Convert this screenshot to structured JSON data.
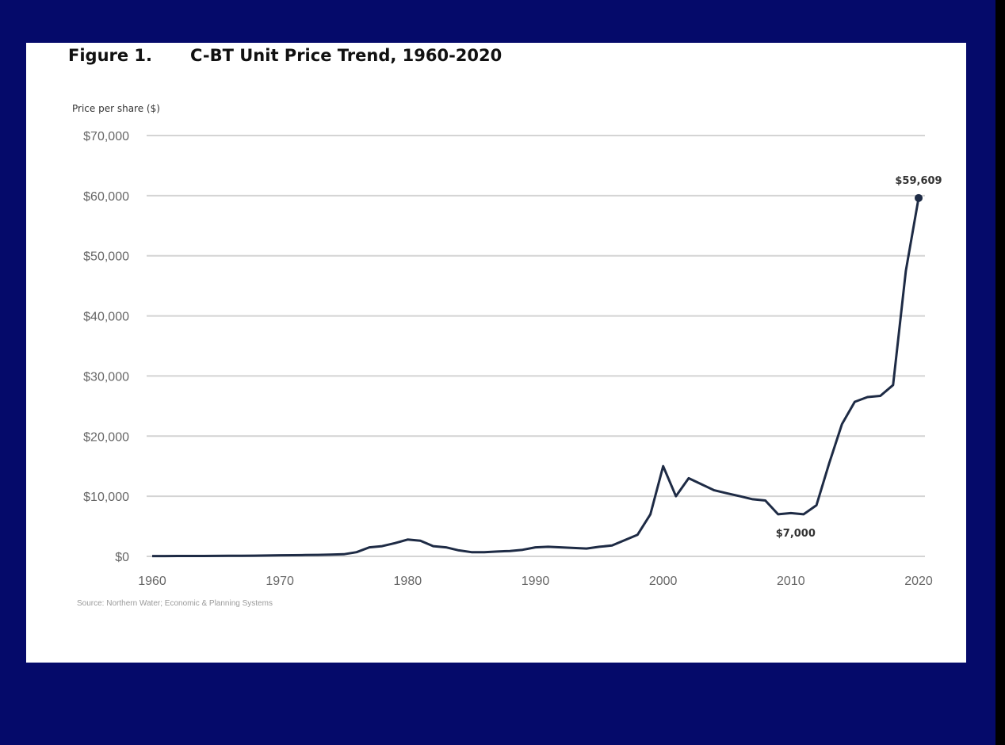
{
  "colors": {
    "background": "#050a6a",
    "panel": "#ffffff",
    "line": "#1e2b45",
    "grid": "#d4d4d4"
  },
  "figure": {
    "number": "Figure 1.",
    "title": "C-BT Unit Price Trend, 1960-2020",
    "source": "Source: Northern Water; Economic & Planning Systems"
  },
  "chart_data": {
    "type": "line",
    "title": "C-BT Unit Price Trend, 1960-2020",
    "ylabel": "Price per share ($)",
    "xlabel": "",
    "xlim": [
      1960,
      2020
    ],
    "ylim": [
      0,
      70000
    ],
    "grid": true,
    "x_ticks": [
      1960,
      1970,
      1980,
      1990,
      2000,
      2010,
      2020
    ],
    "y_ticks": [
      {
        "value": 0,
        "label": "$0"
      },
      {
        "value": 10000,
        "label": "$10,000"
      },
      {
        "value": 20000,
        "label": "$20,000"
      },
      {
        "value": 30000,
        "label": "$30,000"
      },
      {
        "value": 40000,
        "label": "$40,000"
      },
      {
        "value": 50000,
        "label": "$50,000"
      },
      {
        "value": 60000,
        "label": "$60,000"
      },
      {
        "value": 70000,
        "label": "$70,000"
      }
    ],
    "series": [
      {
        "x": [
          1960,
          1961,
          1962,
          1963,
          1964,
          1965,
          1966,
          1967,
          1968,
          1969,
          1970,
          1971,
          1972,
          1973,
          1974,
          1975,
          1976,
          1977,
          1978,
          1979,
          1980,
          1981,
          1982,
          1983,
          1984,
          1985,
          1986,
          1987,
          1988,
          1989,
          1990,
          1991,
          1992,
          1993,
          1994,
          1995,
          1996,
          1997,
          1998,
          1999,
          2000,
          2001,
          2002,
          2003,
          2004,
          2005,
          2006,
          2007,
          2008,
          2009,
          2010,
          2011,
          2012,
          2013,
          2014,
          2015,
          2016,
          2017,
          2018,
          2019,
          2020
        ],
        "y": [
          50,
          50,
          60,
          60,
          70,
          80,
          90,
          100,
          120,
          150,
          180,
          200,
          220,
          250,
          300,
          350,
          700,
          1500,
          1700,
          2200,
          2800,
          2600,
          1700,
          1500,
          1000,
          700,
          700,
          800,
          900,
          1100,
          1500,
          1600,
          1500,
          1400,
          1300,
          1600,
          1800,
          2700,
          3600,
          7000,
          15000,
          10000,
          13000,
          12000,
          11000,
          10500,
          10000,
          9500,
          9300,
          7000,
          7200,
          7000,
          8500,
          15500,
          22000,
          25700,
          26500,
          26700,
          28500,
          47500,
          59609
        ]
      }
    ],
    "annotations": [
      {
        "x": 2020,
        "y": 59609,
        "label": "$59,609",
        "marker": true
      },
      {
        "x": 2010,
        "y": 7000,
        "label": "$7,000",
        "marker": false
      }
    ]
  }
}
